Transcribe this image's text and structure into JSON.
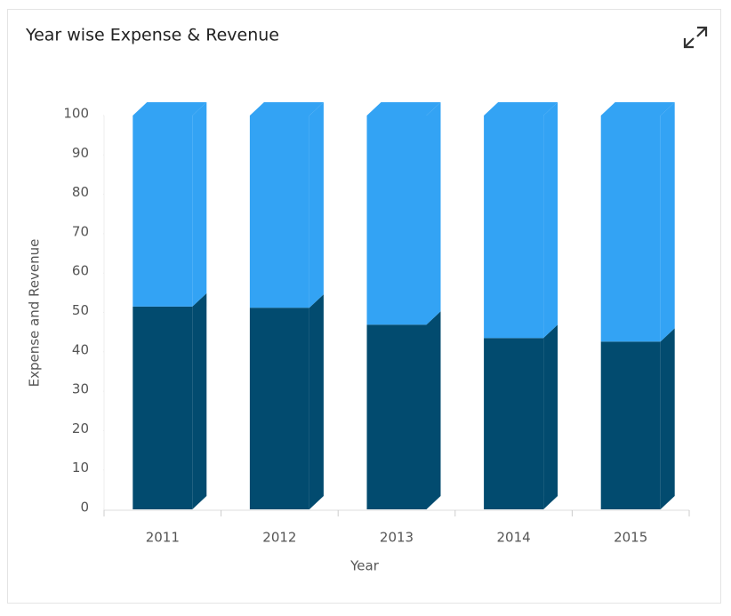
{
  "chart_data": {
    "type": "stacked-3d-column",
    "title": "Year wise Expense & Revenue",
    "x_label": "Year",
    "y_label": "Expense and Revenue",
    "categories": [
      "2011",
      "2012",
      "2013",
      "2014",
      "2015"
    ],
    "series": [
      {
        "color": "#024b6f",
        "values": [
          51.5,
          51.2,
          46.9,
          43.5,
          42.6
        ]
      },
      {
        "color": "#33a3f4",
        "values": [
          48.5,
          48.8,
          53.1,
          56.5,
          57.4
        ]
      }
    ],
    "ylim": [
      0,
      100
    ],
    "yticks": [
      0,
      10,
      20,
      30,
      40,
      50,
      60,
      70,
      80,
      90,
      100
    ]
  }
}
